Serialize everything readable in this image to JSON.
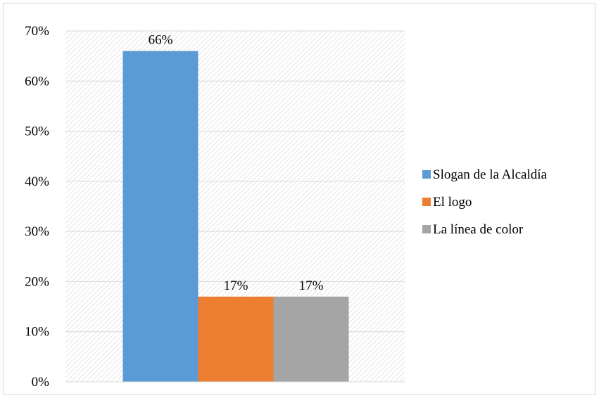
{
  "chart_data": {
    "type": "bar",
    "title": "",
    "xlabel": "",
    "ylabel": "",
    "categories": [
      ""
    ],
    "series": [
      {
        "name": "Slogan de la Alcaldía",
        "values": [
          66
        ],
        "label": "66%",
        "color": "#5b9bd5"
      },
      {
        "name": "El logo",
        "values": [
          17
        ],
        "label": "17%",
        "color": "#ed7d31"
      },
      {
        "name": "La línea de color",
        "values": [
          17
        ],
        "label": "17%",
        "color": "#a5a5a5"
      }
    ],
    "y_ticks": [
      "0%",
      "10%",
      "20%",
      "30%",
      "40%",
      "50%",
      "60%",
      "70%"
    ],
    "ylim": [
      0,
      70
    ],
    "y_unit": "%",
    "grid": true,
    "plot_background": "diagonal hatch",
    "legend_position": "right"
  }
}
